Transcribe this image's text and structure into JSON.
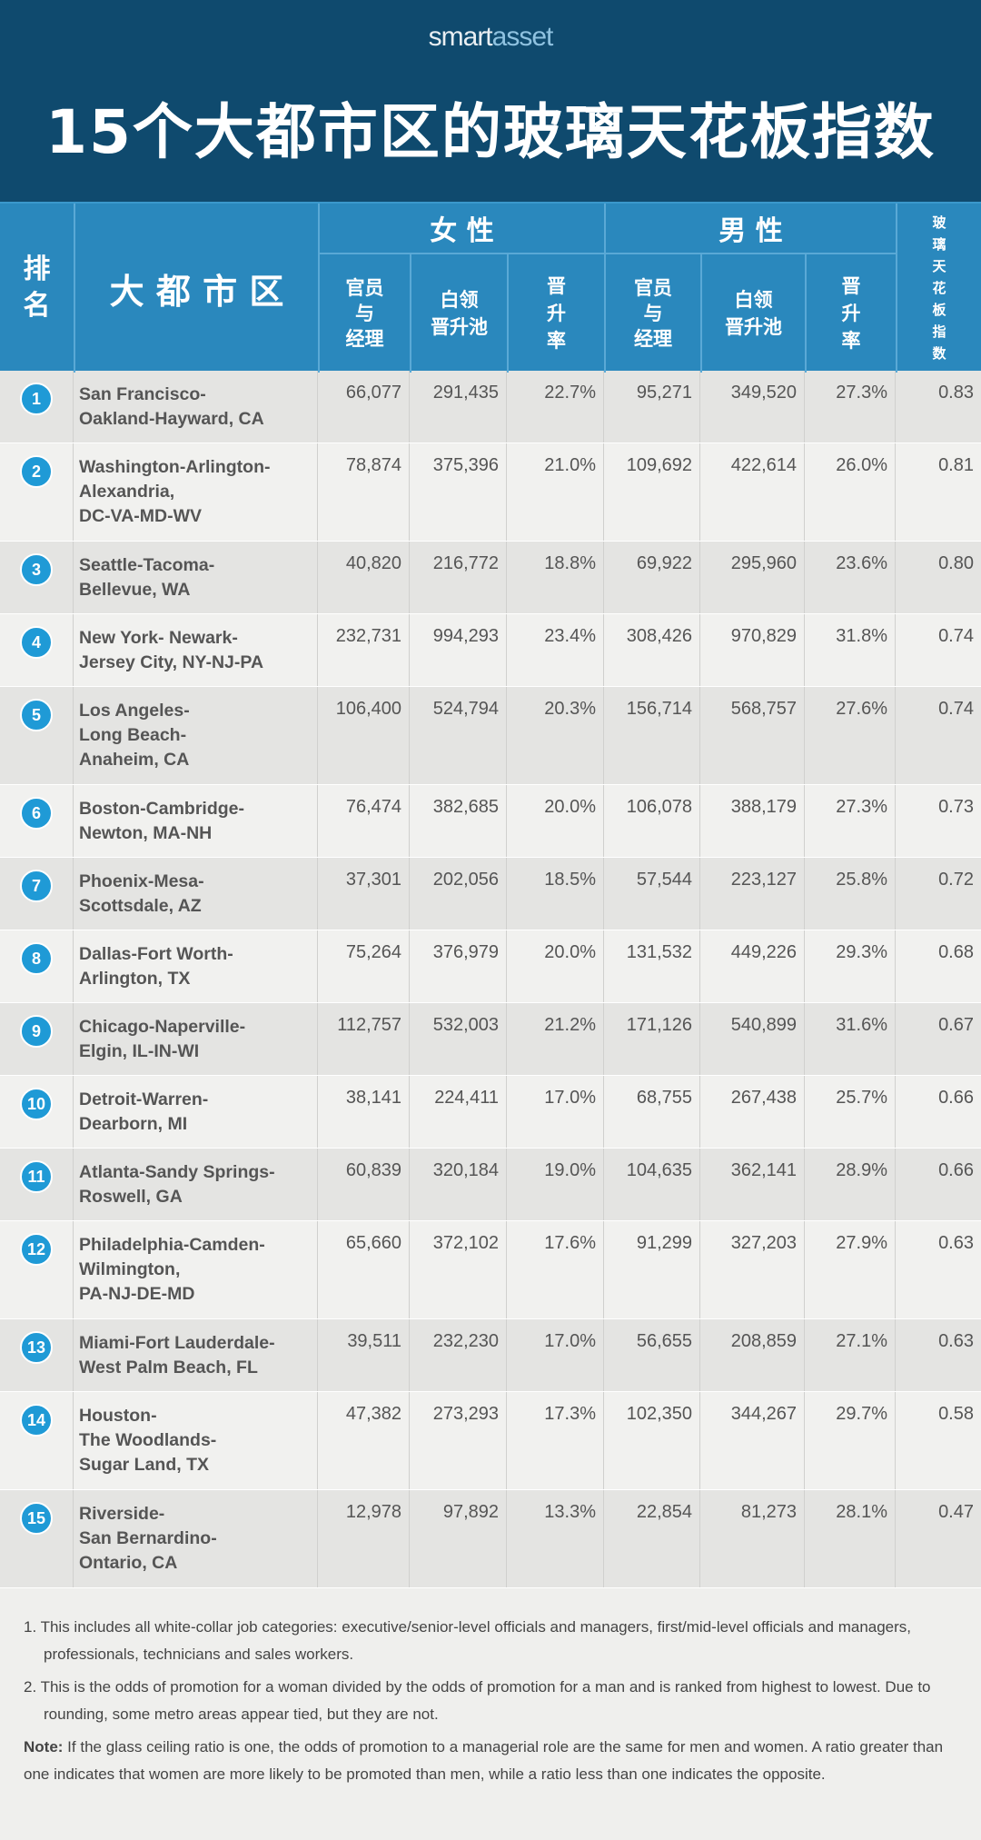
{
  "header": {
    "logo_left": "smart",
    "logo_right": "asset",
    "title": "15个大都市区的玻璃天花板指数"
  },
  "columns": {
    "rank": "排\n名",
    "metro": "大 都 市 区",
    "women": "女 性",
    "men": "男 性",
    "managers": "官员\n与\n经理",
    "pool": "白领\n晋升池",
    "rate": "晋\n升\n率",
    "index": "玻\n璃\n天\n花\n板\n指\n数"
  },
  "rows": [
    {
      "rank": "1",
      "metro": "San Francisco-\nOakland-Hayward, CA",
      "f_mgr": "66,077",
      "f_pool": "291,435",
      "f_rate": "22.7%",
      "m_mgr": "95,271",
      "m_pool": "349,520",
      "m_rate": "27.3%",
      "index": "0.83"
    },
    {
      "rank": "2",
      "metro": "Washington-Arlington-\nAlexandria,\nDC-VA-MD-WV",
      "f_mgr": "78,874",
      "f_pool": "375,396",
      "f_rate": "21.0%",
      "m_mgr": "109,692",
      "m_pool": "422,614",
      "m_rate": "26.0%",
      "index": "0.81"
    },
    {
      "rank": "3",
      "metro": "Seattle-Tacoma-\nBellevue, WA",
      "f_mgr": "40,820",
      "f_pool": "216,772",
      "f_rate": "18.8%",
      "m_mgr": "69,922",
      "m_pool": "295,960",
      "m_rate": "23.6%",
      "index": "0.80"
    },
    {
      "rank": "4",
      "metro": "New York- Newark-\nJersey City, NY-NJ-PA",
      "f_mgr": "232,731",
      "f_pool": "994,293",
      "f_rate": "23.4%",
      "m_mgr": "308,426",
      "m_pool": "970,829",
      "m_rate": "31.8%",
      "index": "0.74"
    },
    {
      "rank": "5",
      "metro": "Los Angeles-\nLong Beach-\nAnaheim, CA",
      "f_mgr": "106,400",
      "f_pool": "524,794",
      "f_rate": "20.3%",
      "m_mgr": "156,714",
      "m_pool": "568,757",
      "m_rate": "27.6%",
      "index": "0.74"
    },
    {
      "rank": "6",
      "metro": "Boston-Cambridge-\nNewton, MA-NH",
      "f_mgr": "76,474",
      "f_pool": "382,685",
      "f_rate": "20.0%",
      "m_mgr": "106,078",
      "m_pool": "388,179",
      "m_rate": "27.3%",
      "index": "0.73"
    },
    {
      "rank": "7",
      "metro": "Phoenix-Mesa-\nScottsdale, AZ",
      "f_mgr": "37,301",
      "f_pool": "202,056",
      "f_rate": "18.5%",
      "m_mgr": "57,544",
      "m_pool": "223,127",
      "m_rate": "25.8%",
      "index": "0.72"
    },
    {
      "rank": "8",
      "metro": "Dallas-Fort Worth-\nArlington, TX",
      "f_mgr": "75,264",
      "f_pool": "376,979",
      "f_rate": "20.0%",
      "m_mgr": "131,532",
      "m_pool": "449,226",
      "m_rate": "29.3%",
      "index": "0.68"
    },
    {
      "rank": "9",
      "metro": "Chicago-Naperville-\nElgin, IL-IN-WI",
      "f_mgr": "112,757",
      "f_pool": "532,003",
      "f_rate": "21.2%",
      "m_mgr": "171,126",
      "m_pool": "540,899",
      "m_rate": "31.6%",
      "index": "0.67"
    },
    {
      "rank": "10",
      "metro": "Detroit-Warren-\nDearborn, MI",
      "f_mgr": "38,141",
      "f_pool": "224,411",
      "f_rate": "17.0%",
      "m_mgr": "68,755",
      "m_pool": "267,438",
      "m_rate": "25.7%",
      "index": "0.66"
    },
    {
      "rank": "11",
      "metro": "Atlanta-Sandy Springs-\nRoswell, GA",
      "f_mgr": "60,839",
      "f_pool": "320,184",
      "f_rate": "19.0%",
      "m_mgr": "104,635",
      "m_pool": "362,141",
      "m_rate": "28.9%",
      "index": "0.66"
    },
    {
      "rank": "12",
      "metro": "Philadelphia-Camden-\nWilmington,\nPA-NJ-DE-MD",
      "f_mgr": "65,660",
      "f_pool": "372,102",
      "f_rate": "17.6%",
      "m_mgr": "91,299",
      "m_pool": "327,203",
      "m_rate": "27.9%",
      "index": "0.63"
    },
    {
      "rank": "13",
      "metro": "Miami-Fort Lauderdale-\nWest Palm Beach, FL",
      "f_mgr": "39,511",
      "f_pool": "232,230",
      "f_rate": "17.0%",
      "m_mgr": "56,655",
      "m_pool": "208,859",
      "m_rate": "27.1%",
      "index": "0.63"
    },
    {
      "rank": "14",
      "metro": "Houston-\nThe Woodlands-\nSugar Land, TX",
      "f_mgr": "47,382",
      "f_pool": "273,293",
      "f_rate": "17.3%",
      "m_mgr": "102,350",
      "m_pool": "344,267",
      "m_rate": "29.7%",
      "index": "0.58"
    },
    {
      "rank": "15",
      "metro": "Riverside-\nSan Bernardino-\nOntario, CA",
      "f_mgr": "12,978",
      "f_pool": "97,892",
      "f_rate": "13.3%",
      "m_mgr": "22,854",
      "m_pool": "81,273",
      "m_rate": "28.1%",
      "index": "0.47"
    }
  ],
  "notes": {
    "n1": "1. This includes all white-collar job categories: executive/senior-level officials and managers, first/mid-level officials and managers, professionals, technicians and sales workers.",
    "n2": "2. This is the odds of promotion for a woman divided by the odds of promotion for a man and is ranked from highest to lowest. Due to rounding, some metro areas appear tied, but they are not.",
    "note_label": "Note:",
    "note": " If the glass ceiling ratio is one, the odds of promotion to a managerial role are the same for men and women. A ratio greater than one indicates that women are more likely to be promoted than men, while a ratio less than one indicates the opposite."
  },
  "colors": {
    "header": "#0f4a6e",
    "table_header": "#2a88bd",
    "rank_circle": "#1f9ad6"
  }
}
